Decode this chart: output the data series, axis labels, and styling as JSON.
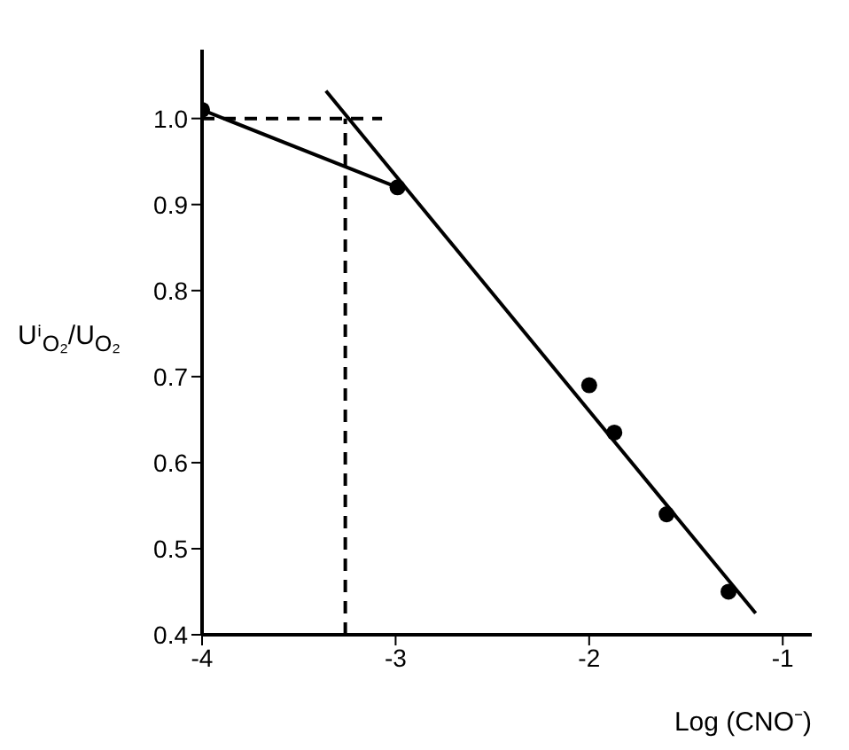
{
  "chart_data": {
    "type": "scatter",
    "xlabel": "Log (CNO⁻)",
    "ylabel": "Uⁱ$_{O₂}$/U$_{O₂}$",
    "xlim": [
      -4,
      -0.85
    ],
    "xticks": [
      -4,
      -3,
      -2,
      -1
    ],
    "ylim": [
      0.4,
      1.08
    ],
    "yticks": [
      0.4,
      0.5,
      0.6,
      0.7,
      0.8,
      0.9,
      {
        "value": 1.0,
        "label": "1.0"
      }
    ],
    "grid": false,
    "series": [
      {
        "color": "#000000",
        "marker": "circle",
        "x": [
          -4.0,
          -2.99,
          -2.0,
          -1.87,
          -1.6,
          -1.28
        ],
        "values": [
          1.01,
          0.92,
          0.69,
          0.635,
          0.54,
          0.45
        ]
      },
      {
        "type": "line",
        "color": "#000000",
        "marker": "none",
        "line_style": "solid",
        "x": [
          -4.0,
          -2.99
        ],
        "values": [
          1.01,
          0.92
        ]
      },
      {
        "type": "line",
        "color": "#000000",
        "marker": "none",
        "line_style": "solid",
        "x": [
          -3.36,
          -1.14
        ],
        "values": [
          1.032,
          0.425
        ]
      },
      {
        "type": "line",
        "color": "#000000",
        "marker": "none",
        "line_style": "dashed",
        "x": [
          -4.0,
          -3.07
        ],
        "values": [
          1.0,
          1.0
        ]
      },
      {
        "type": "line",
        "color": "#000000",
        "marker": "none",
        "line_style": "dashed",
        "x": [
          -3.26,
          -3.26
        ],
        "values": [
          0.4,
          1.0
        ]
      }
    ]
  }
}
